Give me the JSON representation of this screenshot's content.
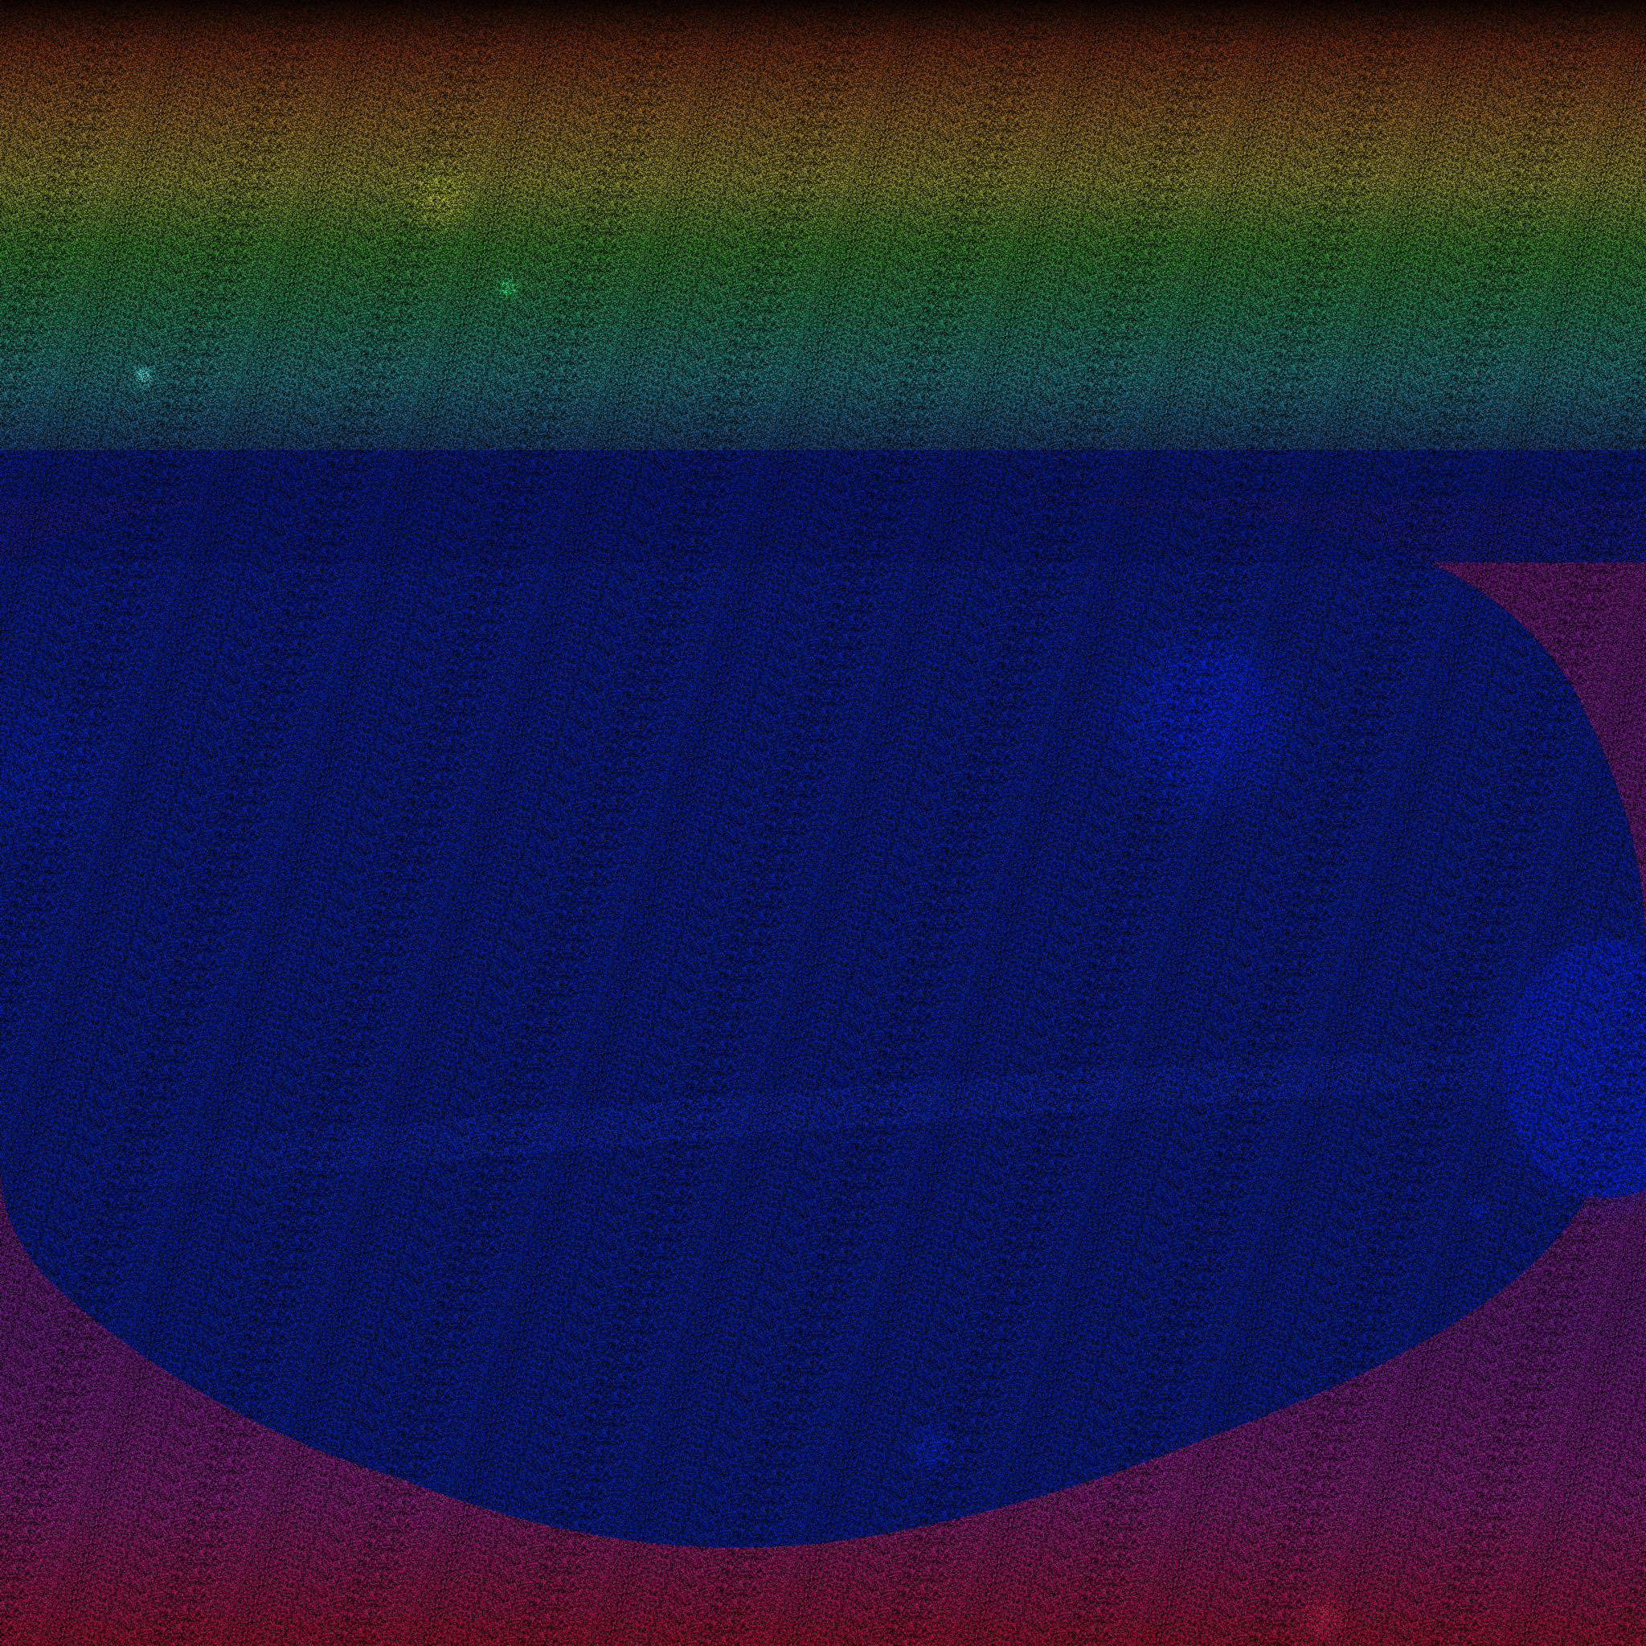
{
  "image": {
    "description_kind": "false-color noisy sky image",
    "palette": {
      "background": "#000000",
      "top_band": "#c24a1c",
      "yellow_band": "#c8c23a",
      "green_band": "#3fae3b",
      "cyan_band": "#35b7b2",
      "navy_band": "#0a1a7a",
      "blue_field": "#0b2bd8",
      "magenta_edges": "#a0249a",
      "red_bottom": "#c21a42",
      "bright_blue_blob": "#0028ff",
      "cyan_star": "#39ffff",
      "green_star": "#25ff7a",
      "pink_star": "#ff2a6a"
    },
    "features": [
      "cyan-star",
      "green-star",
      "bright-blue-blob-upper-right",
      "bright-blue-blob-right-edge",
      "small-blue-blob-lower-middle",
      "pink-star-bottom-right"
    ]
  }
}
